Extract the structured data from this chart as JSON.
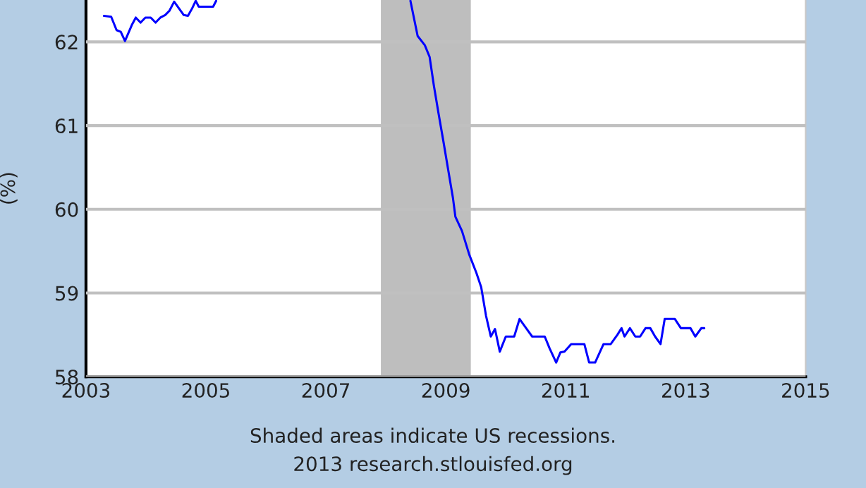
{
  "chart_data": {
    "type": "line",
    "ylabel": "(%)",
    "x": [
      2003.3,
      2003.42,
      2003.51,
      2003.58,
      2003.65,
      2003.77,
      2003.83,
      2003.91,
      2003.99,
      2004.08,
      2004.16,
      2004.24,
      2004.32,
      2004.39,
      2004.47,
      2004.55,
      2004.63,
      2004.7,
      2004.77,
      2004.83,
      2004.88,
      2005.12,
      2005.17,
      2006.8,
      2008.41,
      2008.53,
      2008.65,
      2008.73,
      2008.8,
      2008.88,
      2008.96,
      2009.04,
      2009.12,
      2009.16,
      2009.27,
      2009.39,
      2009.51,
      2009.59,
      2009.67,
      2009.75,
      2009.82,
      2009.9,
      2010.0,
      2010.14,
      2010.23,
      2010.31,
      2010.44,
      2010.65,
      2010.73,
      2010.84,
      2010.91,
      2010.98,
      2011.09,
      2011.31,
      2011.39,
      2011.49,
      2011.63,
      2011.75,
      2011.86,
      2011.93,
      2011.98,
      2012.07,
      2012.16,
      2012.24,
      2012.33,
      2012.41,
      2012.49,
      2012.58,
      2012.65,
      2012.82,
      2012.92,
      2013.08,
      2013.16,
      2013.26,
      2013.31
    ],
    "series": [
      {
        "color": "#0000ff",
        "values": [
          62.31,
          62.3,
          62.14,
          62.12,
          62.01,
          62.21,
          62.29,
          62.23,
          62.29,
          62.29,
          62.23,
          62.29,
          62.32,
          62.37,
          62.48,
          62.4,
          62.32,
          62.31,
          62.4,
          62.49,
          62.42,
          62.42,
          62.49,
          null,
          62.49,
          62.07,
          61.96,
          61.82,
          61.48,
          61.14,
          60.81,
          60.47,
          60.13,
          59.91,
          59.74,
          59.46,
          59.24,
          59.07,
          58.73,
          58.48,
          58.57,
          58.3,
          58.48,
          58.48,
          58.69,
          58.61,
          58.48,
          58.48,
          58.34,
          58.17,
          58.29,
          58.3,
          58.39,
          58.39,
          58.17,
          58.17,
          58.39,
          58.39,
          58.5,
          58.58,
          58.48,
          58.58,
          58.48,
          58.48,
          58.58,
          58.58,
          58.48,
          58.39,
          58.69,
          58.69,
          58.58,
          58.58,
          58.48,
          58.58,
          58.58
        ]
      }
    ],
    "xlim": [
      2003,
      2015
    ],
    "xticks": [
      2003,
      2005,
      2007,
      2009,
      2011,
      2013,
      2015
    ],
    "ylim": [
      58,
      62.5
    ],
    "yticks": [
      58,
      59,
      60,
      61,
      62
    ],
    "bands": [
      {
        "axis": "x",
        "from": 2007.917,
        "to": 2009.417,
        "color": "#bebebe"
      }
    ],
    "grid": "y",
    "line_style": "solid",
    "marker": "none",
    "annotations": [
      "Shaded areas indicate US recessions.",
      "2013 research.stlouisfed.org"
    ]
  }
}
